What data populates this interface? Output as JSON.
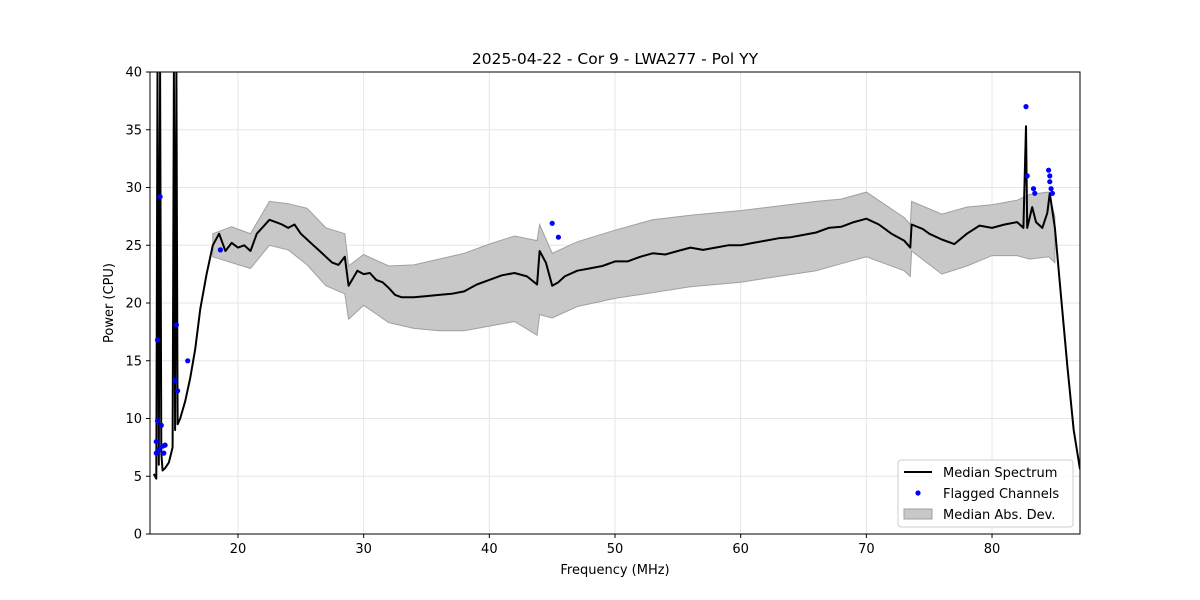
{
  "chart_data": {
    "type": "line",
    "title": "2025-04-22 - Cor 9 - LWA277 - Pol YY",
    "xlabel": "Frequency (MHz)",
    "ylabel": "Power (CPU)",
    "xlim": [
      13,
      87
    ],
    "ylim": [
      0,
      40
    ],
    "xticks": [
      20,
      30,
      40,
      50,
      60,
      70,
      80
    ],
    "yticks": [
      0,
      5,
      10,
      15,
      20,
      25,
      30,
      35,
      40
    ],
    "grid": true,
    "legend_position": "lower-right",
    "legend": [
      "Median Spectrum",
      "Flagged Channels",
      "Median Abs. Dev."
    ],
    "colors": {
      "median": "#000000",
      "flagged": "#0000ff",
      "mad_fill": "#c8c8c8",
      "mad_edge": "#a0a0a0",
      "grid": "#e6e6e6"
    },
    "series": [
      {
        "name": "Median Spectrum",
        "points": [
          [
            13.3,
            5.2
          ],
          [
            13.5,
            4.8
          ],
          [
            13.6,
            40
          ],
          [
            13.7,
            6.0
          ],
          [
            13.8,
            40
          ],
          [
            13.9,
            7.0
          ],
          [
            14.0,
            5.5
          ],
          [
            14.2,
            5.7
          ],
          [
            14.5,
            6.2
          ],
          [
            14.8,
            7.5
          ],
          [
            14.9,
            40
          ],
          [
            15.0,
            9.0
          ],
          [
            15.1,
            40
          ],
          [
            15.2,
            9.5
          ],
          [
            15.4,
            10.0
          ],
          [
            15.8,
            11.5
          ],
          [
            16.2,
            13.5
          ],
          [
            16.6,
            16.0
          ],
          [
            17.0,
            19.5
          ],
          [
            17.5,
            22.5
          ],
          [
            18.0,
            25.0
          ],
          [
            18.5,
            26.0
          ],
          [
            19.0,
            24.5
          ],
          [
            19.5,
            25.2
          ],
          [
            20.0,
            24.8
          ],
          [
            20.5,
            25.0
          ],
          [
            21.0,
            24.5
          ],
          [
            21.5,
            26.0
          ],
          [
            22.0,
            26.6
          ],
          [
            22.5,
            27.2
          ],
          [
            23.0,
            27.0
          ],
          [
            23.5,
            26.8
          ],
          [
            24.0,
            26.5
          ],
          [
            24.5,
            26.8
          ],
          [
            25.0,
            26.0
          ],
          [
            25.5,
            25.5
          ],
          [
            26.0,
            25.0
          ],
          [
            26.5,
            24.5
          ],
          [
            27.0,
            24.0
          ],
          [
            27.5,
            23.5
          ],
          [
            28.0,
            23.3
          ],
          [
            28.5,
            24.0
          ],
          [
            28.8,
            21.5
          ],
          [
            29.5,
            22.8
          ],
          [
            30.0,
            22.5
          ],
          [
            30.5,
            22.6
          ],
          [
            31.0,
            22.0
          ],
          [
            31.5,
            21.8
          ],
          [
            32.0,
            21.3
          ],
          [
            32.5,
            20.7
          ],
          [
            33.0,
            20.5
          ],
          [
            34.0,
            20.5
          ],
          [
            35.0,
            20.6
          ],
          [
            36.0,
            20.7
          ],
          [
            37.0,
            20.8
          ],
          [
            38.0,
            21.0
          ],
          [
            39.0,
            21.6
          ],
          [
            40.0,
            22.0
          ],
          [
            41.0,
            22.4
          ],
          [
            42.0,
            22.6
          ],
          [
            43.0,
            22.3
          ],
          [
            43.8,
            21.6
          ],
          [
            44.0,
            24.5
          ],
          [
            44.5,
            23.5
          ],
          [
            45.0,
            21.5
          ],
          [
            45.5,
            21.8
          ],
          [
            46.0,
            22.3
          ],
          [
            47.0,
            22.8
          ],
          [
            48.0,
            23.0
          ],
          [
            49.0,
            23.2
          ],
          [
            50.0,
            23.6
          ],
          [
            51.0,
            23.6
          ],
          [
            52.0,
            24.0
          ],
          [
            53.0,
            24.3
          ],
          [
            54.0,
            24.2
          ],
          [
            55.0,
            24.5
          ],
          [
            56.0,
            24.8
          ],
          [
            57.0,
            24.6
          ],
          [
            58.0,
            24.8
          ],
          [
            59.0,
            25.0
          ],
          [
            60.0,
            25.0
          ],
          [
            61.0,
            25.2
          ],
          [
            62.0,
            25.4
          ],
          [
            63.0,
            25.6
          ],
          [
            64.0,
            25.7
          ],
          [
            65.0,
            25.9
          ],
          [
            66.0,
            26.1
          ],
          [
            67.0,
            26.5
          ],
          [
            68.0,
            26.6
          ],
          [
            69.0,
            27.0
          ],
          [
            70.0,
            27.3
          ],
          [
            71.0,
            26.8
          ],
          [
            72.0,
            26.0
          ],
          [
            73.0,
            25.4
          ],
          [
            73.5,
            24.8
          ],
          [
            73.6,
            26.8
          ],
          [
            74.5,
            26.4
          ],
          [
            75.0,
            26.0
          ],
          [
            76.0,
            25.5
          ],
          [
            77.0,
            25.1
          ],
          [
            78.0,
            26.0
          ],
          [
            79.0,
            26.7
          ],
          [
            80.0,
            26.5
          ],
          [
            81.0,
            26.8
          ],
          [
            82.0,
            27.0
          ],
          [
            82.5,
            26.5
          ],
          [
            82.7,
            35.3
          ],
          [
            82.8,
            26.5
          ],
          [
            83.2,
            28.3
          ],
          [
            83.5,
            27.0
          ],
          [
            84.0,
            26.5
          ],
          [
            84.4,
            27.8
          ],
          [
            84.6,
            29.5
          ],
          [
            85.0,
            26.5
          ],
          [
            85.5,
            20.5
          ],
          [
            86.0,
            14.5
          ],
          [
            86.5,
            9.0
          ],
          [
            87.0,
            5.6
          ]
        ]
      },
      {
        "name": "Median Abs. Dev.",
        "upper": [
          [
            18.0,
            26.0
          ],
          [
            19.5,
            26.6
          ],
          [
            21.0,
            26.0
          ],
          [
            22.5,
            28.8
          ],
          [
            24.0,
            28.6
          ],
          [
            25.5,
            28.2
          ],
          [
            27.0,
            26.5
          ],
          [
            28.5,
            26.0
          ],
          [
            28.8,
            23.2
          ],
          [
            30.0,
            24.2
          ],
          [
            32.0,
            23.2
          ],
          [
            34.0,
            23.3
          ],
          [
            36.0,
            23.8
          ],
          [
            38.0,
            24.3
          ],
          [
            40.0,
            25.1
          ],
          [
            42.0,
            25.8
          ],
          [
            43.8,
            25.4
          ],
          [
            44.0,
            26.8
          ],
          [
            45.0,
            24.3
          ],
          [
            47.0,
            25.3
          ],
          [
            50.0,
            26.3
          ],
          [
            53.0,
            27.2
          ],
          [
            56.0,
            27.6
          ],
          [
            58.0,
            27.8
          ],
          [
            60.0,
            28.0
          ],
          [
            63.0,
            28.4
          ],
          [
            66.0,
            28.8
          ],
          [
            68.0,
            29.0
          ],
          [
            70.0,
            29.6
          ],
          [
            73.0,
            27.4
          ],
          [
            73.5,
            26.8
          ],
          [
            73.6,
            28.8
          ],
          [
            76.0,
            27.7
          ],
          [
            78.0,
            28.3
          ],
          [
            80.0,
            28.5
          ],
          [
            82.0,
            28.9
          ],
          [
            83.0,
            29.4
          ],
          [
            84.5,
            29.6
          ],
          [
            85.0,
            27.5
          ]
        ],
        "lower": [
          [
            18.0,
            24.0
          ],
          [
            19.5,
            23.5
          ],
          [
            21.0,
            23.0
          ],
          [
            22.5,
            25.0
          ],
          [
            24.0,
            24.6
          ],
          [
            25.5,
            23.3
          ],
          [
            27.0,
            21.5
          ],
          [
            28.5,
            20.8
          ],
          [
            28.8,
            18.6
          ],
          [
            30.0,
            19.8
          ],
          [
            32.0,
            18.3
          ],
          [
            34.0,
            17.8
          ],
          [
            36.0,
            17.6
          ],
          [
            38.0,
            17.6
          ],
          [
            40.0,
            18.0
          ],
          [
            42.0,
            18.4
          ],
          [
            43.8,
            17.2
          ],
          [
            44.0,
            19.0
          ],
          [
            45.0,
            18.7
          ],
          [
            47.0,
            19.7
          ],
          [
            50.0,
            20.4
          ],
          [
            53.0,
            20.9
          ],
          [
            56.0,
            21.4
          ],
          [
            58.0,
            21.6
          ],
          [
            60.0,
            21.8
          ],
          [
            63.0,
            22.3
          ],
          [
            66.0,
            22.8
          ],
          [
            68.0,
            23.4
          ],
          [
            70.0,
            24.0
          ],
          [
            73.0,
            22.8
          ],
          [
            73.5,
            22.3
          ],
          [
            73.6,
            24.5
          ],
          [
            76.0,
            22.5
          ],
          [
            78.0,
            23.2
          ],
          [
            80.0,
            24.1
          ],
          [
            82.0,
            24.1
          ],
          [
            83.0,
            23.8
          ],
          [
            84.5,
            24.0
          ],
          [
            85.0,
            23.5
          ]
        ]
      },
      {
        "name": "Flagged Channels",
        "points": [
          [
            13.5,
            8.0
          ],
          [
            13.6,
            9.8
          ],
          [
            13.6,
            16.8
          ],
          [
            13.7,
            7.3
          ],
          [
            13.8,
            29.2
          ],
          [
            13.9,
            9.4
          ],
          [
            14.0,
            7.6
          ],
          [
            14.1,
            7.0
          ],
          [
            14.2,
            7.7
          ],
          [
            13.5,
            7.0
          ],
          [
            15.0,
            13.3
          ],
          [
            15.1,
            18.1
          ],
          [
            15.2,
            12.4
          ],
          [
            16.0,
            15.0
          ],
          [
            18.6,
            24.6
          ],
          [
            45.0,
            26.9
          ],
          [
            45.5,
            25.7
          ],
          [
            82.7,
            37.0
          ],
          [
            82.8,
            31.0
          ],
          [
            83.3,
            29.9
          ],
          [
            83.4,
            29.5
          ],
          [
            84.5,
            31.5
          ],
          [
            84.6,
            31.0
          ],
          [
            84.6,
            30.5
          ],
          [
            84.7,
            29.9
          ],
          [
            84.8,
            29.5
          ]
        ]
      }
    ]
  }
}
